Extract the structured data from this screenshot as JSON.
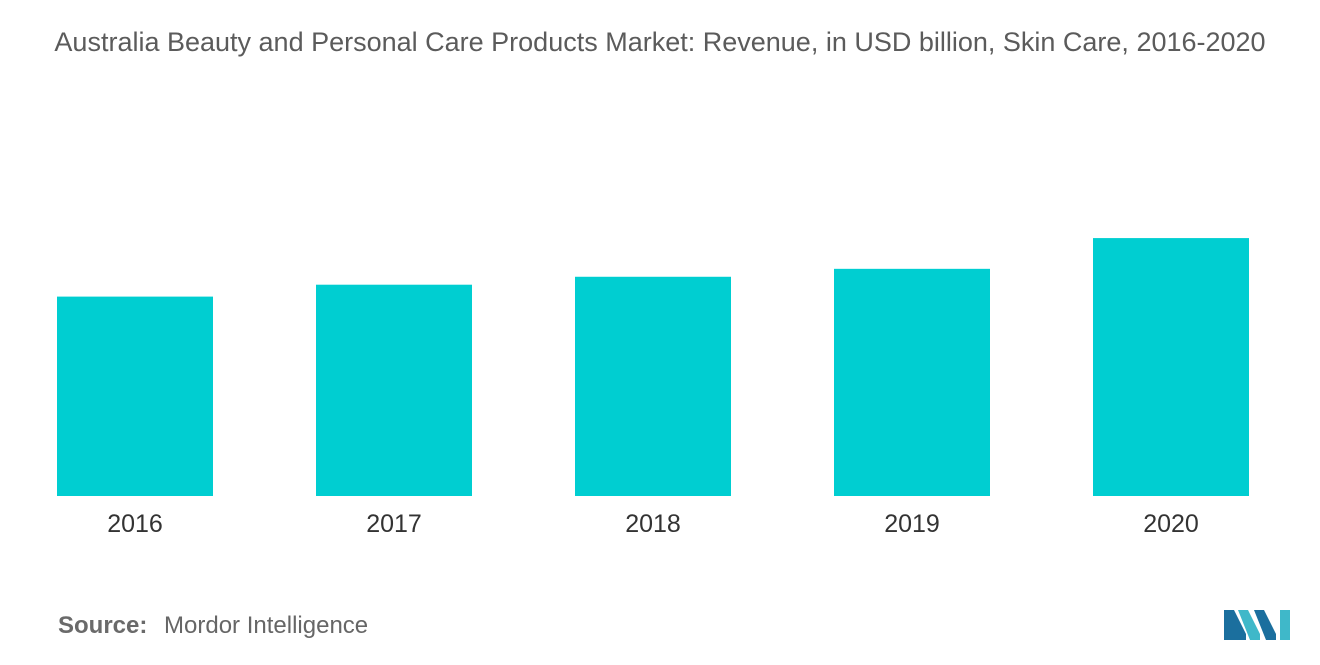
{
  "chart_data": {
    "type": "bar",
    "title": "Australia Beauty and Personal Care Products Market: Revenue, in USD billion, Skin Care, 2016-2020",
    "categories": [
      "2016",
      "2017",
      "2018",
      "2019",
      "2020"
    ],
    "values": [
      2.01,
      2.13,
      2.21,
      2.29,
      2.6
    ],
    "xlabel": "",
    "ylabel": "",
    "ylim": [
      0,
      5.0
    ],
    "grid": false,
    "legend": "none",
    "bar_color": "#00CED1"
  },
  "source": {
    "label": "Source:",
    "text": "Mordor Intelligence"
  },
  "logo": {
    "icon": "mordor-intelligence-logo-icon",
    "colors": [
      "#1B6F9E",
      "#3FB8C9"
    ]
  }
}
